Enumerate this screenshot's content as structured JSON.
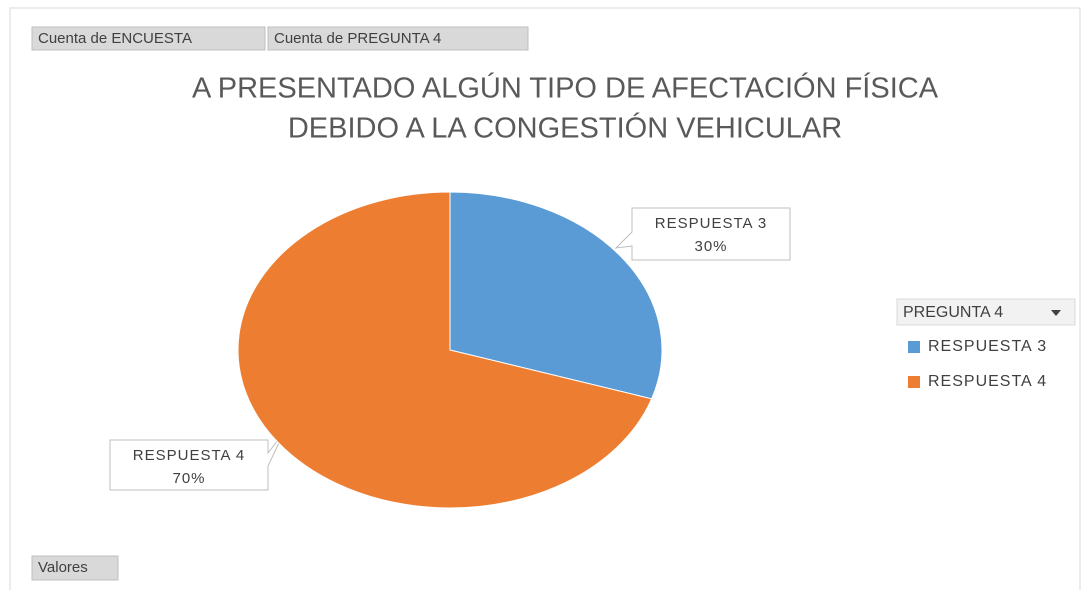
{
  "chart_data": {
    "type": "pie",
    "title": [
      "A PRESENTADO ALGÚN TIPO DE AFECTACIÓN FÍSICA",
      "DEBIDO A LA CONGESTIÓN VEHICULAR"
    ],
    "field_buttons": [
      "Cuenta de ENCUESTA",
      "Cuenta de PREGUNTA 4",
      "Valores"
    ],
    "legend_title": "PREGUNTA 4",
    "legend": "right",
    "categories": [
      "RESPUESTA 3",
      "RESPUESTA 4"
    ],
    "values": [
      30,
      70
    ],
    "value_labels": [
      "30%",
      "70%"
    ],
    "colors": [
      "#5b9bd5",
      "#ed7d31"
    ]
  }
}
